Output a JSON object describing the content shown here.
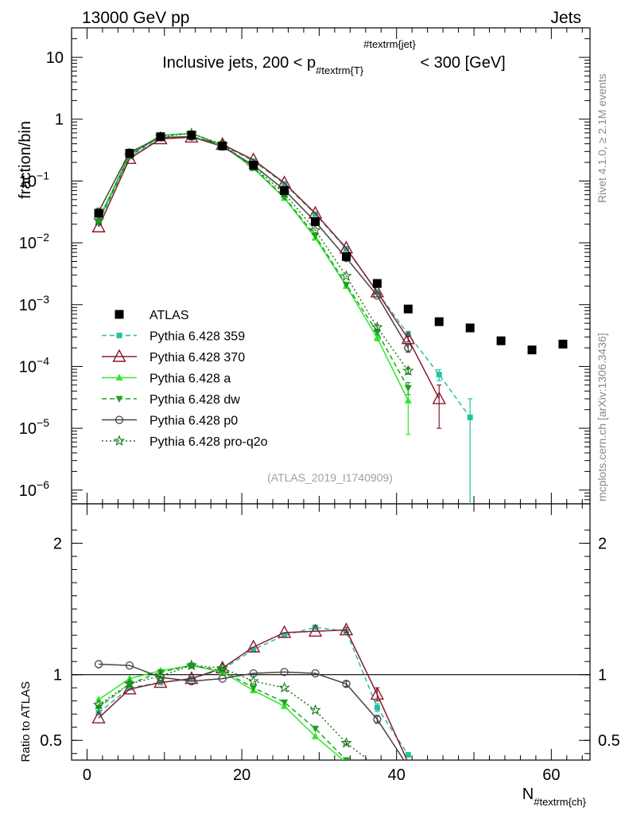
{
  "header": {
    "left": "13000 GeV pp",
    "right": "Jets"
  },
  "chart_data": [
    {
      "type": "line",
      "panel": "main",
      "title": {
        "prefix": "Inclusive jets, 200 < p",
        "sub": "#textrm{T}",
        "sup": "#textrm{jet}",
        "suffix": " < 300 [GeV]"
      },
      "ylabel": "fraction/bin",
      "yscale": "log",
      "ylim": [
        6e-07,
        30
      ],
      "xlim": [
        -2,
        65
      ],
      "y_ticks": [
        {
          "value": 1e-06,
          "base": "10",
          "exp": "−6"
        },
        {
          "value": 1e-05,
          "base": "10",
          "exp": "−5"
        },
        {
          "value": 0.0001,
          "base": "10",
          "exp": "−4"
        },
        {
          "value": 0.001,
          "base": "10",
          "exp": "−3"
        },
        {
          "value": 0.01,
          "base": "10",
          "exp": "−2"
        },
        {
          "value": 0.1,
          "base": "10",
          "exp": "−1"
        },
        {
          "value": 1,
          "base": "1",
          "exp": ""
        },
        {
          "value": 10,
          "base": "10",
          "exp": ""
        }
      ],
      "reference": {
        "name": "ATLAS",
        "color": "#000000",
        "x": [
          1.5,
          5.5,
          9.5,
          13.5,
          17.5,
          21.5,
          25.5,
          29.5,
          33.5,
          37.5,
          41.5,
          45.5,
          49.5,
          53.5,
          57.5,
          61.5
        ],
        "y": [
          0.03,
          0.28,
          0.52,
          0.55,
          0.37,
          0.18,
          0.07,
          0.022,
          0.006,
          0.0022,
          0.00085,
          0.00053,
          0.00042,
          0.00026,
          0.000185,
          0.00023
        ]
      },
      "series": [
        {
          "name": "Pythia 6.428 359",
          "color": "#1fc3a0",
          "dash": "6,4",
          "marker": "square-small",
          "x": [
            1.5,
            5.5,
            9.5,
            13.5,
            17.5,
            21.5,
            25.5,
            29.5,
            33.5,
            37.5,
            41.5,
            45.5,
            49.5
          ],
          "y": [
            0.021,
            0.25,
            0.49,
            0.53,
            0.38,
            0.21,
            0.09,
            0.029,
            0.008,
            0.0016,
            0.00033,
            7.4e-05,
            1.5e-05
          ],
          "err_lo": [
            0,
            0,
            0,
            0,
            0,
            0,
            0,
            0,
            0,
            0,
            3e-05,
            1.5e-05,
            1.5e-05
          ],
          "err_hi": [
            0,
            0,
            0,
            0,
            0,
            0,
            0,
            0,
            0,
            0,
            4e-05,
            1.5e-05,
            1.5e-05
          ]
        },
        {
          "name": "Pythia 6.428 370",
          "color": "#8b1a2b",
          "dash": "",
          "marker": "triangle-up-open",
          "x": [
            1.5,
            5.5,
            9.5,
            13.5,
            17.5,
            21.5,
            25.5,
            29.5,
            33.5,
            37.5,
            41.5,
            45.5
          ],
          "y": [
            0.018,
            0.23,
            0.48,
            0.51,
            0.39,
            0.22,
            0.093,
            0.03,
            0.0082,
            0.0016,
            0.00028,
            3e-05
          ],
          "err_lo": [
            0,
            0,
            0,
            0,
            0,
            0,
            0,
            0,
            0,
            0,
            3e-05,
            2e-05
          ],
          "err_hi": [
            0,
            0,
            0,
            0,
            0,
            0,
            0,
            0,
            0,
            0,
            3e-05,
            2e-05
          ]
        },
        {
          "name": "Pythia 6.428 a",
          "color": "#2ee82e",
          "dash": "",
          "marker": "triangle-up-filled",
          "x": [
            1.5,
            5.5,
            9.5,
            13.5,
            17.5,
            21.5,
            25.5,
            29.5,
            33.5,
            37.5,
            41.5
          ],
          "y": [
            0.024,
            0.27,
            0.55,
            0.59,
            0.38,
            0.16,
            0.053,
            0.012,
            0.002,
            0.00029,
            2.8e-05
          ],
          "err_lo": [
            0,
            0,
            0,
            0,
            0,
            0,
            0,
            0,
            0,
            3e-05,
            2e-05
          ],
          "err_hi": [
            0,
            0,
            0,
            0,
            0,
            0,
            0,
            0,
            0,
            3e-05,
            2e-05
          ]
        },
        {
          "name": "Pythia 6.428 dw",
          "color": "#1ea21e",
          "dash": "6,4",
          "marker": "triangle-down-filled",
          "x": [
            1.5,
            5.5,
            9.5,
            13.5,
            17.5,
            21.5,
            25.5,
            29.5,
            33.5,
            37.5,
            41.5
          ],
          "y": [
            0.022,
            0.26,
            0.54,
            0.59,
            0.38,
            0.165,
            0.055,
            0.013,
            0.0021,
            0.00036,
            4.5e-05
          ],
          "err_lo": [
            0,
            0,
            0,
            0,
            0,
            0,
            0,
            0,
            0,
            3e-05,
            1e-05
          ],
          "err_hi": [
            0,
            0,
            0,
            0,
            0,
            0,
            0,
            0,
            0,
            3e-05,
            1e-05
          ]
        },
        {
          "name": "Pythia 6.428 p0",
          "color": "#444444",
          "dash": "",
          "marker": "circle-open",
          "x": [
            1.5,
            5.5,
            9.5,
            13.5,
            17.5,
            21.5,
            25.5,
            29.5,
            33.5,
            37.5,
            41.5
          ],
          "y": [
            0.032,
            0.29,
            0.51,
            0.52,
            0.36,
            0.18,
            0.072,
            0.022,
            0.0057,
            0.0014,
            0.0002
          ],
          "err_lo": [
            0,
            0,
            0,
            0,
            0,
            0,
            0,
            0,
            0,
            0,
            3e-05
          ],
          "err_hi": [
            0,
            0,
            0,
            0,
            0,
            0,
            0,
            0,
            0,
            0,
            3e-05
          ]
        },
        {
          "name": "Pythia 6.428 pro-q2o",
          "color": "#1a7a1a",
          "dash": "2,3",
          "marker": "star-open",
          "x": [
            1.5,
            5.5,
            9.5,
            13.5,
            17.5,
            21.5,
            25.5,
            29.5,
            33.5,
            37.5,
            41.5
          ],
          "y": [
            0.023,
            0.26,
            0.52,
            0.59,
            0.39,
            0.17,
            0.063,
            0.016,
            0.0029,
            0.00043,
            8.5e-05
          ],
          "err_lo": [
            0,
            0,
            0,
            0,
            0,
            0,
            0,
            0,
            0,
            3e-05,
            1e-05
          ],
          "err_hi": [
            0,
            0,
            0,
            0,
            0,
            0,
            0,
            0,
            0,
            3e-05,
            1e-05
          ]
        }
      ],
      "legend": {
        "placement": "middle-left",
        "entries": [
          "ATLAS",
          "Pythia 6.428 359",
          "Pythia 6.428 370",
          "Pythia 6.428 a",
          "Pythia 6.428 dw",
          "Pythia 6.428 p0",
          "Pythia 6.428 pro-q2o"
        ]
      },
      "annotation": "(ATLAS_2019_I1740909)"
    },
    {
      "type": "line",
      "panel": "ratio",
      "ylabel": "Ratio to ATLAS",
      "ylim": [
        0.35,
        2.3
      ],
      "xlim": [
        -2,
        65
      ],
      "y_ticks": [
        0.5,
        1,
        2
      ],
      "y_tick_labels": [
        "0.5",
        "1",
        "2"
      ],
      "x_ticks": [
        0,
        20,
        40,
        60
      ],
      "x_tick_labels": [
        "0",
        "20",
        "40",
        "60"
      ],
      "xlabel": {
        "main": "N",
        "sub": "#textrm{ch}"
      },
      "reference_line": 1,
      "series": [
        {
          "name": "Pythia 6.428 359",
          "color": "#1fc3a0",
          "dash": "6,4",
          "marker": "square-small",
          "x": [
            1.5,
            5.5,
            9.5,
            13.5,
            17.5,
            21.5,
            25.5,
            29.5,
            33.5,
            37.5,
            41.5
          ],
          "y": [
            0.71,
            0.9,
            0.94,
            0.97,
            1.04,
            1.19,
            1.3,
            1.36,
            1.33,
            0.75,
            0.39
          ],
          "err": [
            0,
            0,
            0,
            0,
            0,
            0,
            0,
            0,
            0,
            0.03,
            0
          ]
        },
        {
          "name": "Pythia 6.428 370",
          "color": "#8b1a2b",
          "dash": "",
          "marker": "triangle-up-open",
          "x": [
            1.5,
            5.5,
            9.5,
            13.5,
            17.5,
            21.5,
            25.5,
            29.5,
            33.5,
            37.5,
            41.5
          ],
          "y": [
            0.67,
            0.89,
            0.94,
            0.97,
            1.05,
            1.21,
            1.32,
            1.33,
            1.34,
            0.85,
            0.33
          ],
          "err": [
            0,
            0,
            0,
            0,
            0,
            0,
            0,
            0,
            0.02,
            0.05,
            0
          ]
        },
        {
          "name": "Pythia 6.428 a",
          "color": "#2ee82e",
          "dash": "",
          "marker": "triangle-up-filled",
          "x": [
            1.5,
            5.5,
            9.5,
            13.5,
            17.5,
            21.5,
            25.5,
            29.5,
            33.5
          ],
          "y": [
            0.81,
            0.97,
            1.03,
            1.07,
            1.02,
            0.88,
            0.76,
            0.53,
            0.33
          ],
          "err": [
            0,
            0,
            0,
            0,
            0,
            0,
            0,
            0,
            0
          ]
        },
        {
          "name": "Pythia 6.428 dw",
          "color": "#1ea21e",
          "dash": "6,4",
          "marker": "triangle-down-filled",
          "x": [
            1.5,
            5.5,
            9.5,
            13.5,
            17.5,
            21.5,
            25.5,
            29.5,
            33.5
          ],
          "y": [
            0.75,
            0.93,
            1.02,
            1.07,
            1.03,
            0.9,
            0.79,
            0.59,
            0.35
          ],
          "err": [
            0,
            0,
            0,
            0,
            0,
            0,
            0,
            0,
            0
          ]
        },
        {
          "name": "Pythia 6.428 p0",
          "color": "#444444",
          "dash": "",
          "marker": "circle-open",
          "x": [
            1.5,
            5.5,
            9.5,
            13.5,
            17.5,
            21.5,
            25.5,
            29.5,
            33.5,
            37.5,
            41.5
          ],
          "y": [
            1.08,
            1.07,
            0.98,
            0.95,
            0.97,
            1.01,
            1.02,
            1.01,
            0.93,
            0.66,
            0.3
          ],
          "err": [
            0,
            0,
            0,
            0,
            0,
            0,
            0,
            0,
            0.02,
            0.03,
            0
          ]
        },
        {
          "name": "Pythia 6.428 pro-q2o",
          "color": "#1a7a1a",
          "dash": "2,3",
          "marker": "star-open",
          "x": [
            1.5,
            5.5,
            9.5,
            13.5,
            17.5,
            21.5,
            25.5,
            29.5,
            33.5,
            37.5
          ],
          "y": [
            0.77,
            0.93,
            0.99,
            1.07,
            1.05,
            0.95,
            0.9,
            0.73,
            0.48,
            0.3
          ],
          "err": [
            0,
            0,
            0,
            0,
            0,
            0,
            0,
            0,
            0.01,
            0
          ]
        }
      ]
    }
  ],
  "side_labels": {
    "rivet": "Rivet 4.1.0, ≥ 2.1M events",
    "mcplots": "mcplots.cern.ch [arXiv:1306.3436]"
  }
}
